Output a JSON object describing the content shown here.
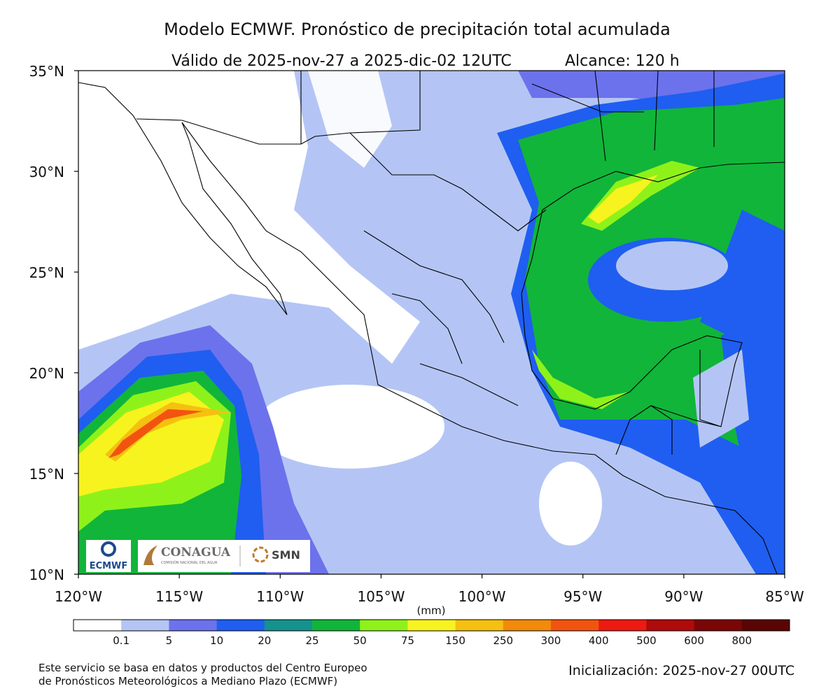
{
  "header": {
    "title": "Modelo ECMWF. Pronóstico de precipitación total acumulada",
    "valid": "Válido de 2025-nov-27 a 2025-dic-02 12UTC",
    "range": "Alcance: 120 h"
  },
  "map": {
    "lat_labels": [
      "35°N",
      "30°N",
      "25°N",
      "20°N",
      "15°N",
      "10°N"
    ],
    "lon_labels": [
      "120°W",
      "115°W",
      "110°W",
      "105°W",
      "100°W",
      "95°W",
      "90°W",
      "85°W"
    ]
  },
  "colorbar": {
    "unit": "(mm)",
    "labels": [
      "0.1",
      "5",
      "10",
      "20",
      "25",
      "50",
      "75",
      "150",
      "250",
      "300",
      "400",
      "500",
      "600",
      "800"
    ],
    "colors": [
      "#ffffff",
      "#b4c5f5",
      "#6c72ec",
      "#1f5ef0",
      "#15928c",
      "#11b53a",
      "#8ef21a",
      "#f7f31e",
      "#f5c010",
      "#f28a0a",
      "#f25410",
      "#ee1a12",
      "#b00a0a",
      "#7a0606",
      "#5a0404"
    ]
  },
  "logos": {
    "ecmwf": "ECMWF",
    "conagua": "CONAGUA",
    "conagua_sub": "COMISIÓN NACIONAL DEL AGUA",
    "smn": "SMN"
  },
  "footer": {
    "credit": [
      "Este servicio se basa en datos y productos del Centro Europeo",
      "de Pronósticos Meteorológicos a Mediano Plazo (ECMWF)"
    ],
    "init": "Inicialización: 2025-nov-27 00UTC"
  }
}
